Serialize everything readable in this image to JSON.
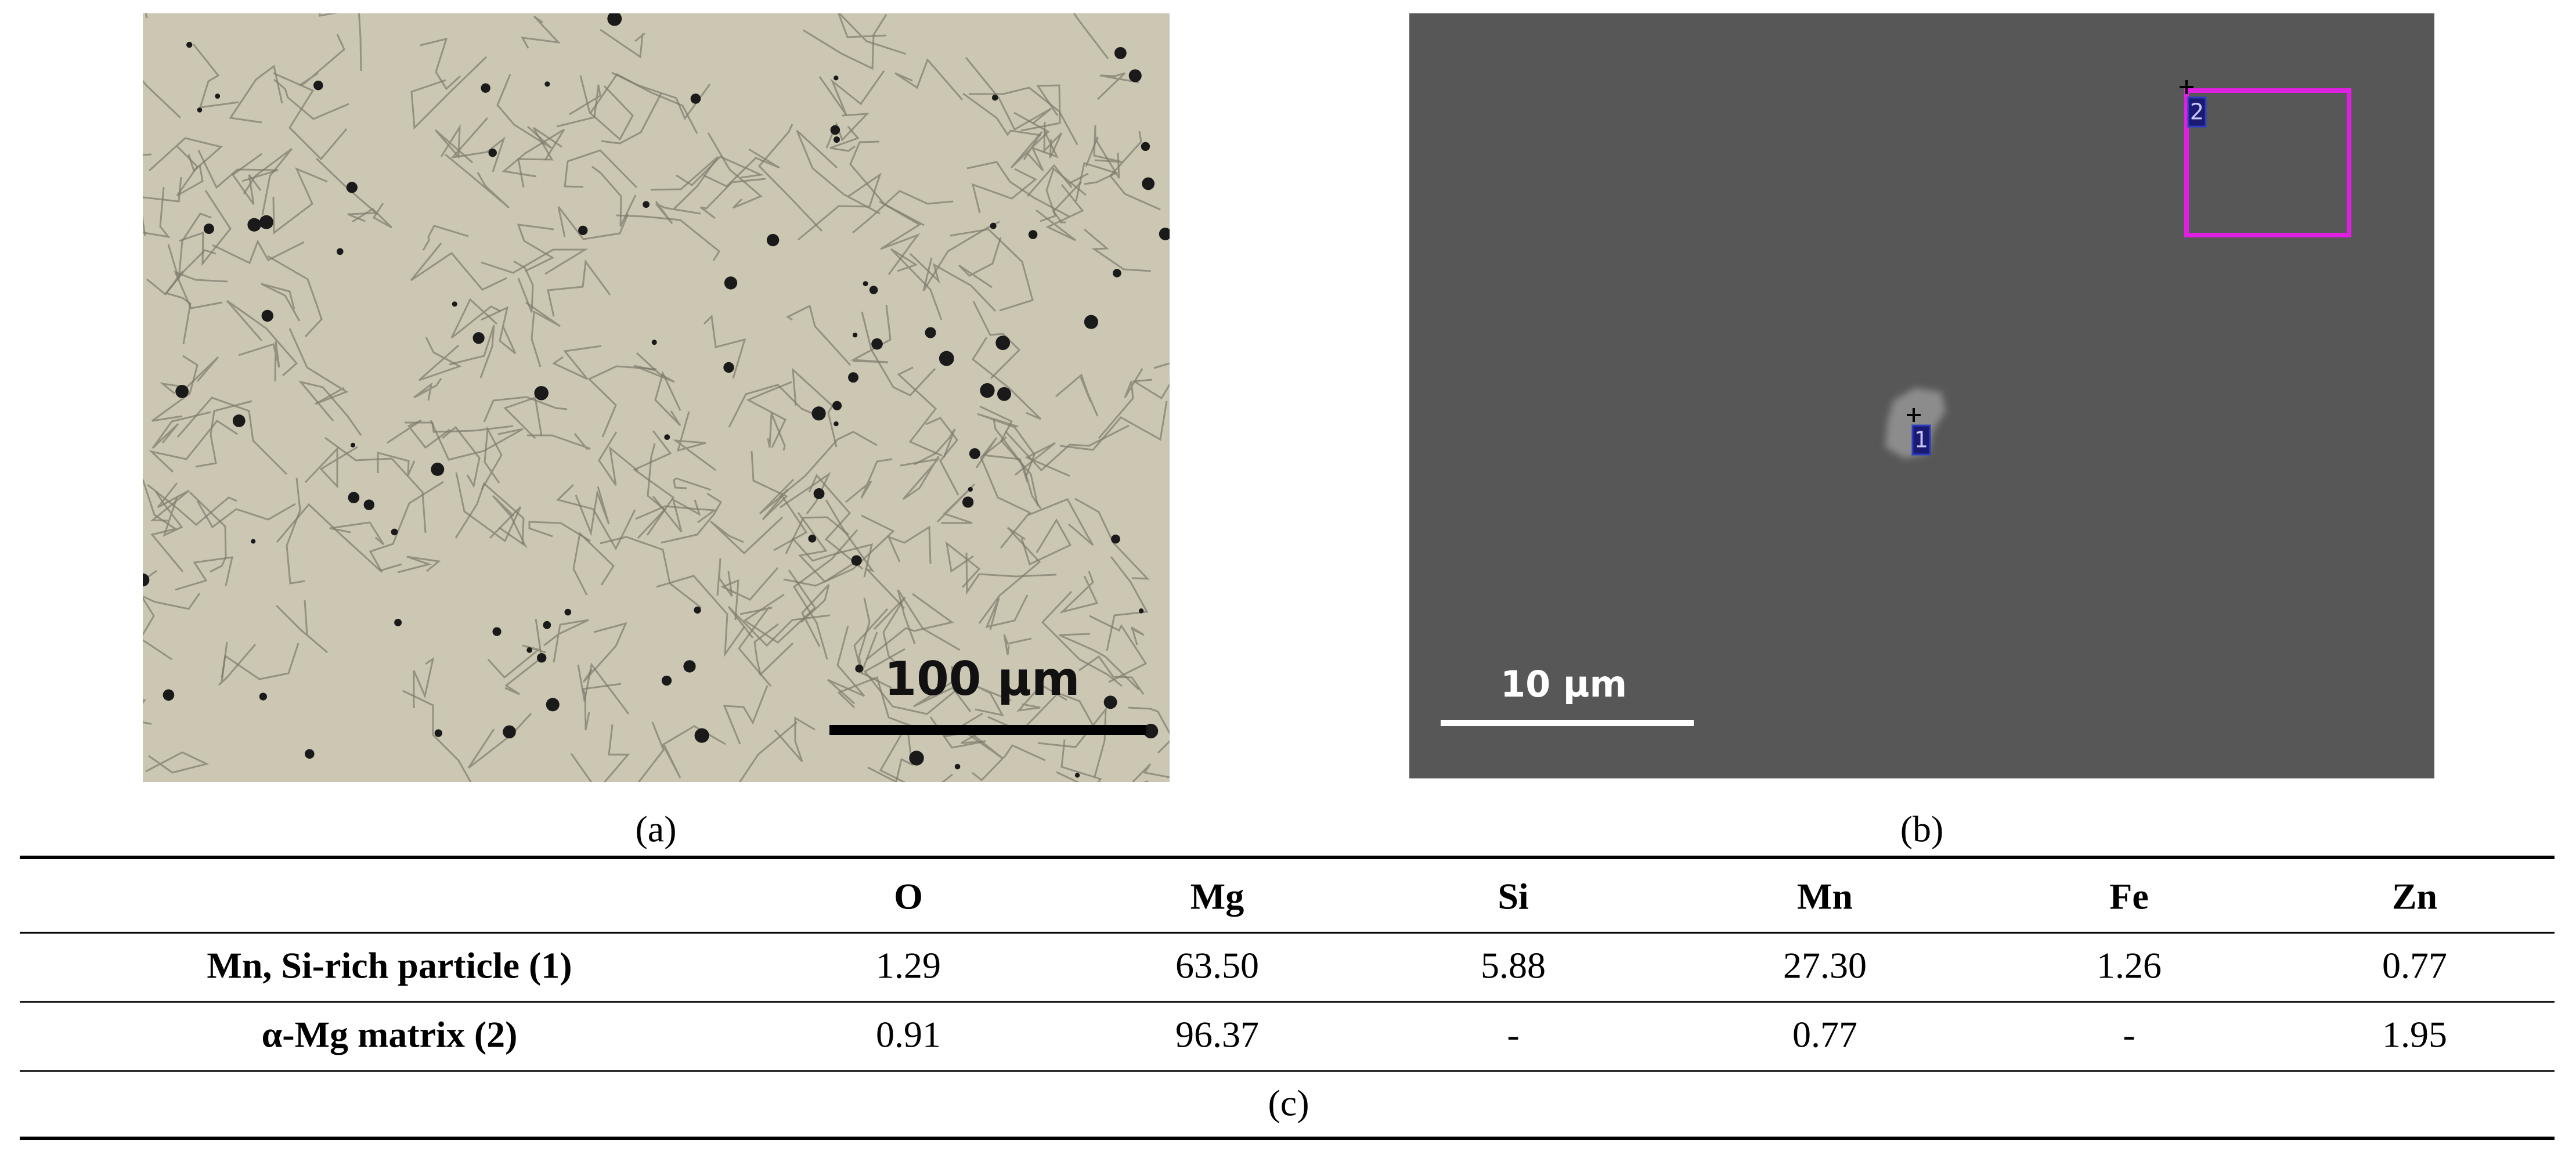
{
  "panels": [
    {
      "caption": "(a)",
      "scale_bar": "100 µm"
    },
    {
      "caption": "(b)",
      "scale_bar": "10 µm",
      "markers": [
        "1",
        "2"
      ]
    }
  ],
  "table": {
    "columns": [
      "O",
      "Mg",
      "Si",
      "Mn",
      "Fe",
      "Zn"
    ],
    "rows": [
      {
        "label": "Mn, Si-rich particle (1)",
        "values": [
          "1.29",
          "63.50",
          "5.88",
          "27.30",
          "1.26",
          "0.77"
        ]
      },
      {
        "label": "α-Mg matrix (2)",
        "values": [
          "0.91",
          "96.37",
          "-",
          "0.77",
          "-",
          "1.95"
        ]
      }
    ],
    "caption": "(c)"
  }
}
